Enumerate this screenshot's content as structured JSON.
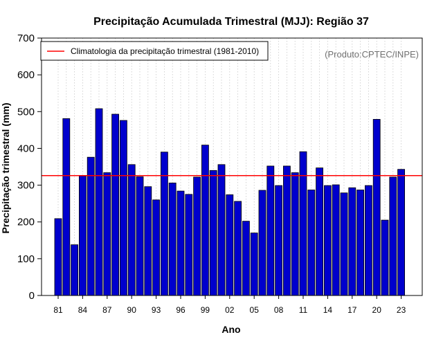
{
  "chart_data": {
    "type": "bar",
    "title": "Precipitação Acumulada Trimestral (MJJ): Região 37",
    "xlabel": "Ano",
    "ylabel": "Precipitação trimestral (mm)",
    "ylim": [
      0,
      700
    ],
    "yticks": [
      0,
      100,
      200,
      300,
      400,
      500,
      600,
      700
    ],
    "xticks": [
      {
        "label": "81",
        "index": 0
      },
      {
        "label": "84",
        "index": 3
      },
      {
        "label": "87",
        "index": 6
      },
      {
        "label": "90",
        "index": 9
      },
      {
        "label": "93",
        "index": 12
      },
      {
        "label": "96",
        "index": 15
      },
      {
        "label": "99",
        "index": 18
      },
      {
        "label": "02",
        "index": 21
      },
      {
        "label": "05",
        "index": 24
      },
      {
        "label": "08",
        "index": 27
      },
      {
        "label": "11",
        "index": 30
      },
      {
        "label": "14",
        "index": 33
      },
      {
        "label": "17",
        "index": 36
      },
      {
        "label": "20",
        "index": 39
      },
      {
        "label": "23",
        "index": 42
      }
    ],
    "categories": [
      "1981",
      "1982",
      "1983",
      "1984",
      "1985",
      "1986",
      "1987",
      "1988",
      "1989",
      "1990",
      "1991",
      "1992",
      "1993",
      "1994",
      "1995",
      "1996",
      "1997",
      "1998",
      "1999",
      "2000",
      "2001",
      "2002",
      "2003",
      "2004",
      "2005",
      "2006",
      "2007",
      "2008",
      "2009",
      "2010",
      "2011",
      "2012",
      "2013",
      "2014",
      "2015",
      "2016",
      "2017",
      "2018",
      "2019",
      "2020",
      "2021",
      "2022",
      "2023"
    ],
    "values": [
      209,
      481,
      138,
      325,
      376,
      508,
      334,
      493,
      476,
      356,
      323,
      296,
      260,
      390,
      306,
      284,
      275,
      322,
      409,
      340,
      356,
      274,
      256,
      202,
      170,
      286,
      352,
      299,
      352,
      334,
      391,
      287,
      347,
      299,
      301,
      279,
      293,
      287,
      299,
      479,
      205,
      322,
      343
    ],
    "climatology": 326,
    "legend": {
      "label": "Climatologia da precipitação trimestral (1981-2010)",
      "position": "top-left"
    },
    "credit": "(Produto:CPTEC/INPE)",
    "colors": {
      "bar": "#0000cd",
      "bar_border": "#000000",
      "climatology_line": "#ff0000",
      "grid": "#c8c8c8"
    },
    "grid": "vertical-dotted"
  }
}
